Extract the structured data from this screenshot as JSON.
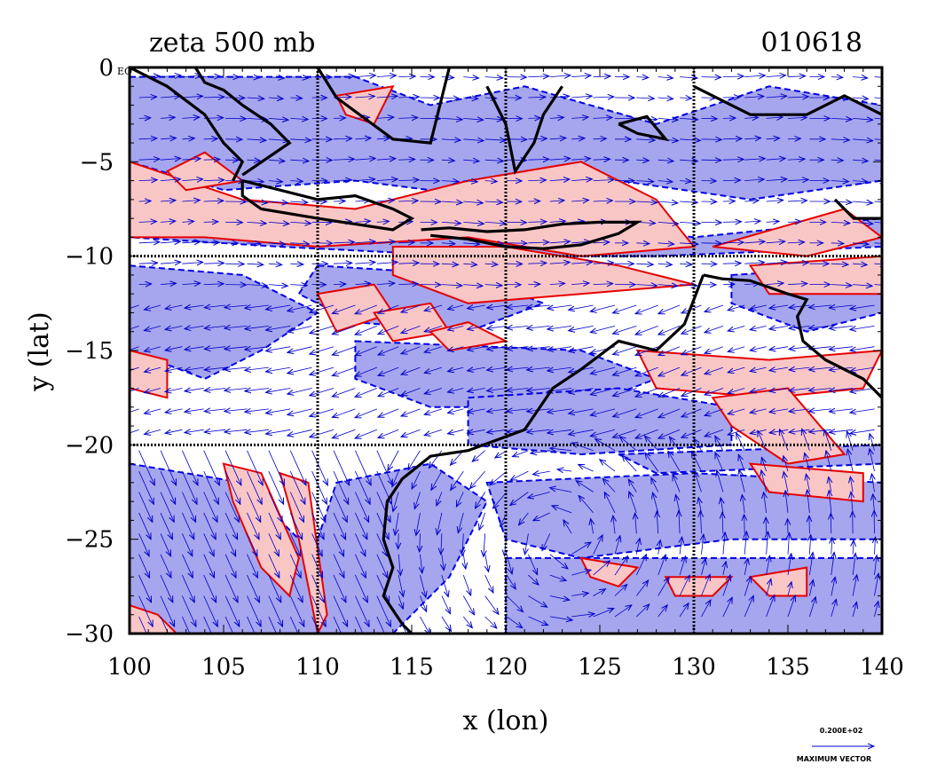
{
  "chart_data": {
    "type": "contour",
    "title": "zeta 500 mb",
    "date_label": "010618",
    "xlabel": "x (lon)",
    "ylabel": "y (lat)",
    "xlim": [
      100,
      140
    ],
    "ylim": [
      -30,
      0
    ],
    "x_ticks": [
      100,
      105,
      110,
      115,
      120,
      125,
      130,
      135,
      140
    ],
    "x_tick_labels": [
      "100",
      "105",
      "110",
      "115",
      "120",
      "125",
      "130",
      "135",
      "140"
    ],
    "y_ticks": [
      0,
      -5,
      -10,
      -15,
      -20,
      -25,
      -30
    ],
    "y_tick_labels": [
      "0",
      "−5",
      "−10",
      "−15",
      "−20",
      "−25",
      "−30"
    ],
    "y_top_suffix": "EQ",
    "grid_lon": [
      110,
      120,
      130
    ],
    "grid_lat": [
      -10,
      -20
    ],
    "grid": true,
    "legend": {
      "placement": "bottom-right",
      "value": "0.200E+02",
      "label": "MAXIMUM VECTOR"
    },
    "colors": {
      "positive_fill": "#f9c6c6",
      "positive_contour": "#e60000",
      "negative_fill": "#a6a6ee",
      "negative_contour": "#0000e6",
      "vector": "#0000cc",
      "coastline": "#000000"
    }
  }
}
